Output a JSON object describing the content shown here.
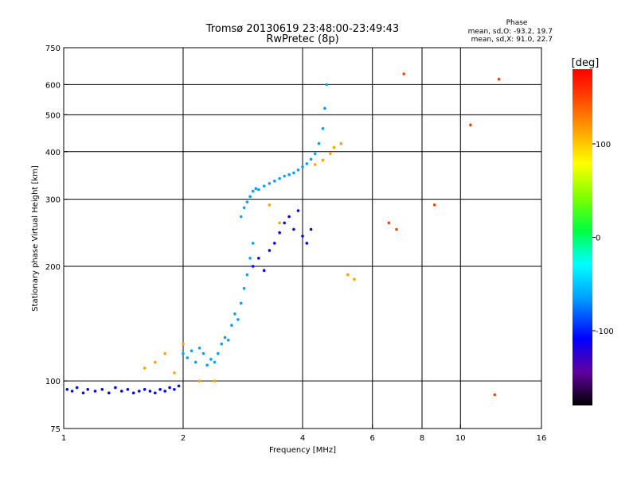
{
  "chart_data": {
    "type": "scatter",
    "title": "Tromsø 20130619 23:48:00-23:49:43",
    "subtitle": "RwPretec (8p)",
    "xlabel": "Frequency [MHz]",
    "ylabel": "Stationary phase Virtual Height [km]",
    "x_scale": "log",
    "y_scale": "log",
    "xlim": [
      1,
      16
    ],
    "ylim": [
      75,
      750
    ],
    "x_ticks": [
      1,
      2,
      4,
      6,
      8,
      10,
      16
    ],
    "y_ticks": [
      75,
      100,
      200,
      300,
      400,
      500,
      600,
      750
    ],
    "x_gridlines": [
      2,
      4,
      6,
      8,
      10
    ],
    "y_gridlines": [
      100,
      200,
      300,
      400,
      500,
      600
    ],
    "grid": true,
    "stats": {
      "heading": "Phase",
      "o_line": "mean, sd,O: -93.2, 19.7",
      "x_line": "mean, sd,X:  91.0, 22.7"
    },
    "colorbar": {
      "unit": "[deg]",
      "range": [
        -180,
        180
      ],
      "ticks": [
        100,
        0,
        -100
      ],
      "colors": [
        "#000000",
        "#6000a0",
        "#0000ff",
        "#00a0ff",
        "#00ffff",
        "#00ff40",
        "#80ff00",
        "#ffff00",
        "#ffa000",
        "#ff4000",
        "#ff0000"
      ]
    },
    "traces": [
      {
        "name": "",
        "phase": -100,
        "points": [
          [
            1.02,
            95
          ],
          [
            1.05,
            94
          ],
          [
            1.08,
            96
          ],
          [
            1.12,
            93
          ],
          [
            1.15,
            95
          ],
          [
            1.2,
            94
          ],
          [
            1.25,
            95
          ],
          [
            1.3,
            93
          ],
          [
            1.35,
            96
          ],
          [
            1.4,
            94
          ],
          [
            1.45,
            95
          ],
          [
            1.5,
            93
          ],
          [
            1.55,
            94
          ],
          [
            1.6,
            95
          ],
          [
            1.65,
            94
          ],
          [
            1.7,
            93
          ],
          [
            1.75,
            95
          ],
          [
            1.8,
            94
          ],
          [
            1.85,
            96
          ],
          [
            1.9,
            95
          ],
          [
            1.95,
            97
          ]
        ]
      },
      {
        "name": "",
        "phase": -90,
        "points": [
          [
            2.0,
            118
          ],
          [
            2.05,
            115
          ],
          [
            2.1,
            120
          ],
          [
            2.15,
            112
          ],
          [
            2.2,
            122
          ],
          [
            2.25,
            118
          ],
          [
            2.3,
            110
          ],
          [
            2.35,
            114
          ],
          [
            2.4,
            112
          ],
          [
            2.45,
            118
          ],
          [
            2.5,
            125
          ],
          [
            2.55,
            130
          ],
          [
            2.6,
            128
          ],
          [
            2.65,
            140
          ],
          [
            2.7,
            150
          ],
          [
            2.75,
            145
          ],
          [
            2.8,
            160
          ],
          [
            2.85,
            175
          ],
          [
            2.9,
            190
          ],
          [
            2.95,
            210
          ],
          [
            3.0,
            230
          ]
        ]
      },
      {
        "name": "",
        "phase": -80,
        "points": [
          [
            2.8,
            270
          ],
          [
            2.85,
            285
          ],
          [
            2.9,
            295
          ],
          [
            2.95,
            305
          ],
          [
            3.0,
            315
          ],
          [
            3.05,
            320
          ],
          [
            3.1,
            318
          ],
          [
            3.2,
            325
          ],
          [
            3.3,
            330
          ],
          [
            3.4,
            335
          ],
          [
            3.5,
            340
          ],
          [
            3.6,
            345
          ],
          [
            3.7,
            348
          ],
          [
            3.8,
            352
          ],
          [
            3.9,
            358
          ],
          [
            4.0,
            365
          ],
          [
            4.1,
            372
          ],
          [
            4.2,
            382
          ],
          [
            4.3,
            395
          ],
          [
            4.4,
            420
          ],
          [
            4.5,
            460
          ],
          [
            4.55,
            520
          ],
          [
            4.6,
            600
          ]
        ]
      },
      {
        "name": "",
        "phase": -100,
        "points": [
          [
            3.0,
            200
          ],
          [
            3.1,
            210
          ],
          [
            3.2,
            195
          ],
          [
            3.3,
            220
          ],
          [
            3.4,
            230
          ],
          [
            3.5,
            245
          ],
          [
            3.6,
            260
          ],
          [
            3.7,
            270
          ],
          [
            3.8,
            250
          ],
          [
            3.9,
            280
          ],
          [
            4.0,
            240
          ],
          [
            4.1,
            230
          ],
          [
            4.2,
            250
          ]
        ]
      },
      {
        "name": "",
        "phase": 90,
        "points": [
          [
            1.6,
            108
          ],
          [
            1.7,
            112
          ],
          [
            1.8,
            118
          ],
          [
            1.9,
            105
          ],
          [
            2.0,
            125
          ],
          [
            2.2,
            100
          ],
          [
            2.4,
            100
          ],
          [
            3.3,
            290
          ],
          [
            3.5,
            260
          ],
          [
            4.3,
            370
          ],
          [
            4.5,
            380
          ],
          [
            4.7,
            395
          ],
          [
            4.8,
            410
          ],
          [
            5.0,
            420
          ],
          [
            5.2,
            190
          ],
          [
            5.4,
            185
          ]
        ]
      },
      {
        "name": "",
        "phase": 150,
        "points": [
          [
            6.6,
            260
          ],
          [
            6.9,
            250
          ],
          [
            7.2,
            640
          ],
          [
            8.6,
            290
          ],
          [
            10.6,
            470
          ],
          [
            12.5,
            620
          ],
          [
            12.2,
            92
          ]
        ]
      }
    ]
  }
}
